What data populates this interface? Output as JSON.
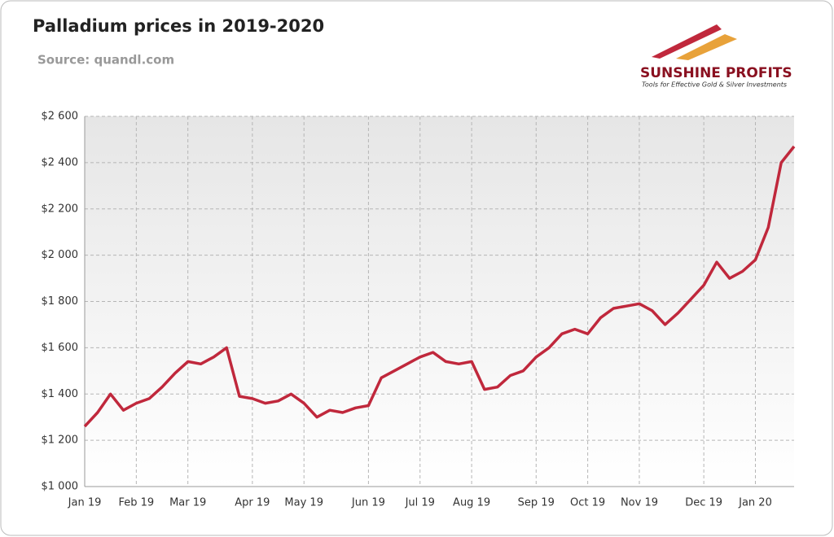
{
  "chart_data": {
    "type": "line",
    "title": "Palladium prices in 2019-2020",
    "subtitle": "Source: quandl.com",
    "categories": [
      "Jan 19",
      null,
      null,
      null,
      "Feb 19",
      null,
      null,
      null,
      "Mar 19",
      null,
      null,
      null,
      null,
      "Apr 19",
      null,
      null,
      null,
      "May 19",
      null,
      null,
      null,
      null,
      "Jun 19",
      null,
      null,
      null,
      "Jul 19",
      null,
      null,
      null,
      "Aug 19",
      null,
      null,
      null,
      null,
      "Sep 19",
      null,
      null,
      null,
      "Oct 19",
      null,
      null,
      null,
      "Nov 19",
      null,
      null,
      null,
      null,
      "Dec 19",
      null,
      null,
      null,
      "Jan 20",
      null,
      null,
      null
    ],
    "series": [
      {
        "name": "Palladium",
        "color": "#c0283c",
        "values": [
          1260,
          1320,
          1400,
          1330,
          1360,
          1380,
          1430,
          1490,
          1540,
          1530,
          1560,
          1600,
          1390,
          1380,
          1360,
          1370,
          1400,
          1360,
          1300,
          1330,
          1320,
          1340,
          1350,
          1470,
          1500,
          1530,
          1560,
          1580,
          1540,
          1530,
          1540,
          1420,
          1430,
          1480,
          1500,
          1560,
          1600,
          1660,
          1680,
          1660,
          1730,
          1770,
          1780,
          1790,
          1760,
          1700,
          1750,
          1810,
          1870,
          1970,
          1900,
          1930,
          1980,
          2120,
          2400,
          2470
        ]
      }
    ],
    "ylim": [
      1000,
      2600
    ],
    "yticks": [
      {
        "value": 1000,
        "label": "$1 000"
      },
      {
        "value": 1200,
        "label": "$1 200"
      },
      {
        "value": 1400,
        "label": "$1 400"
      },
      {
        "value": 1600,
        "label": "$1 600"
      },
      {
        "value": 1800,
        "label": "$1 800"
      },
      {
        "value": 2000,
        "label": "$2 000"
      },
      {
        "value": 2200,
        "label": "$2 200"
      },
      {
        "value": 2400,
        "label": "$2 400"
      },
      {
        "value": 2600,
        "label": "$2 600"
      }
    ],
    "grid": true
  },
  "logo": {
    "name": "SUNSHINE PROFITS",
    "tagline": "Tools for Effective Gold & Silver Investments"
  }
}
